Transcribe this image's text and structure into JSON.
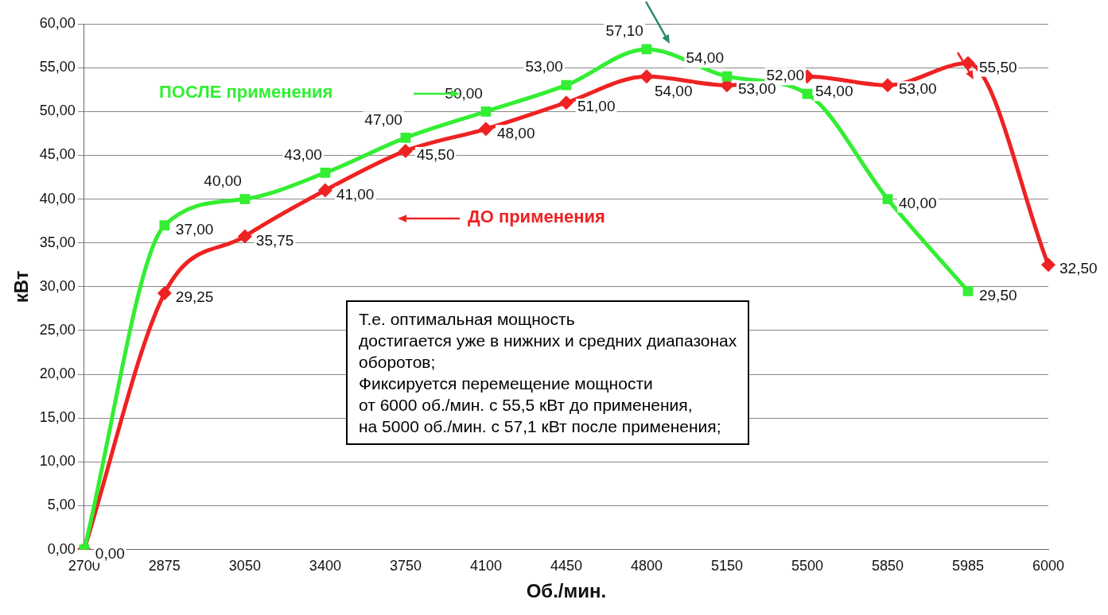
{
  "chart_data": {
    "type": "line",
    "xlabel": "Об./мин.",
    "ylabel": "кВт",
    "categories": [
      "2700",
      "2875",
      "3050",
      "3400",
      "3750",
      "4100",
      "4450",
      "4800",
      "5150",
      "5500",
      "5850",
      "5985",
      "6000"
    ],
    "series": [
      {
        "name": "ПОСЛЕ применения",
        "color": "#33ee33",
        "marker": "square",
        "values": [
          0,
          37,
          40,
          43,
          47,
          50,
          53,
          57.1,
          54,
          52,
          40,
          29.5,
          null
        ],
        "value_labels": [
          null,
          "37,00",
          "40,00",
          "43,00",
          "47,00",
          "50,00",
          "53,00",
          "57,10",
          "54,00",
          "52,00",
          "40,00",
          "29,50",
          null
        ]
      },
      {
        "name": "ДО применения",
        "color": "#ee2222",
        "marker": "diamond",
        "values": [
          0,
          29.25,
          35.75,
          41,
          45.5,
          48,
          51,
          54,
          53,
          54,
          53,
          55.5,
          32.5
        ],
        "value_labels": [
          "0,00",
          "29,25",
          "35,75",
          "41,00",
          "45,50",
          "48,00",
          "51,00",
          "54,00",
          "53,00",
          "54,00",
          "53,00",
          "55,50",
          "32,50"
        ]
      }
    ],
    "ylim": [
      0,
      60
    ],
    "yticks": [
      {
        "value": 0,
        "label": "0,00"
      },
      {
        "value": 5,
        "label": "5,00"
      },
      {
        "value": 10,
        "label": "10,00"
      },
      {
        "value": 15,
        "label": "15,00"
      },
      {
        "value": 20,
        "label": "20,00"
      },
      {
        "value": 25,
        "label": "25,00"
      },
      {
        "value": 30,
        "label": "30,00"
      },
      {
        "value": 35,
        "label": "35,00"
      },
      {
        "value": 40,
        "label": "40,00"
      },
      {
        "value": 45,
        "label": "45,00"
      },
      {
        "value": 50,
        "label": "50,00"
      },
      {
        "value": 55,
        "label": "55,00"
      },
      {
        "value": 60,
        "label": "60,00"
      }
    ],
    "grid": "y",
    "legend": "top left",
    "line_style": "solid",
    "annotations": [
      "Т.е. оптимальная мощность\nдостигается уже в нижних и средних диапазонах\nоборотов;\nФиксируется перемещение мощности\nот 6000 об./мин. с 55,5 кВт до применения,\nна 5000 об./мин. с 57,1 кВт после применения;"
    ]
  }
}
